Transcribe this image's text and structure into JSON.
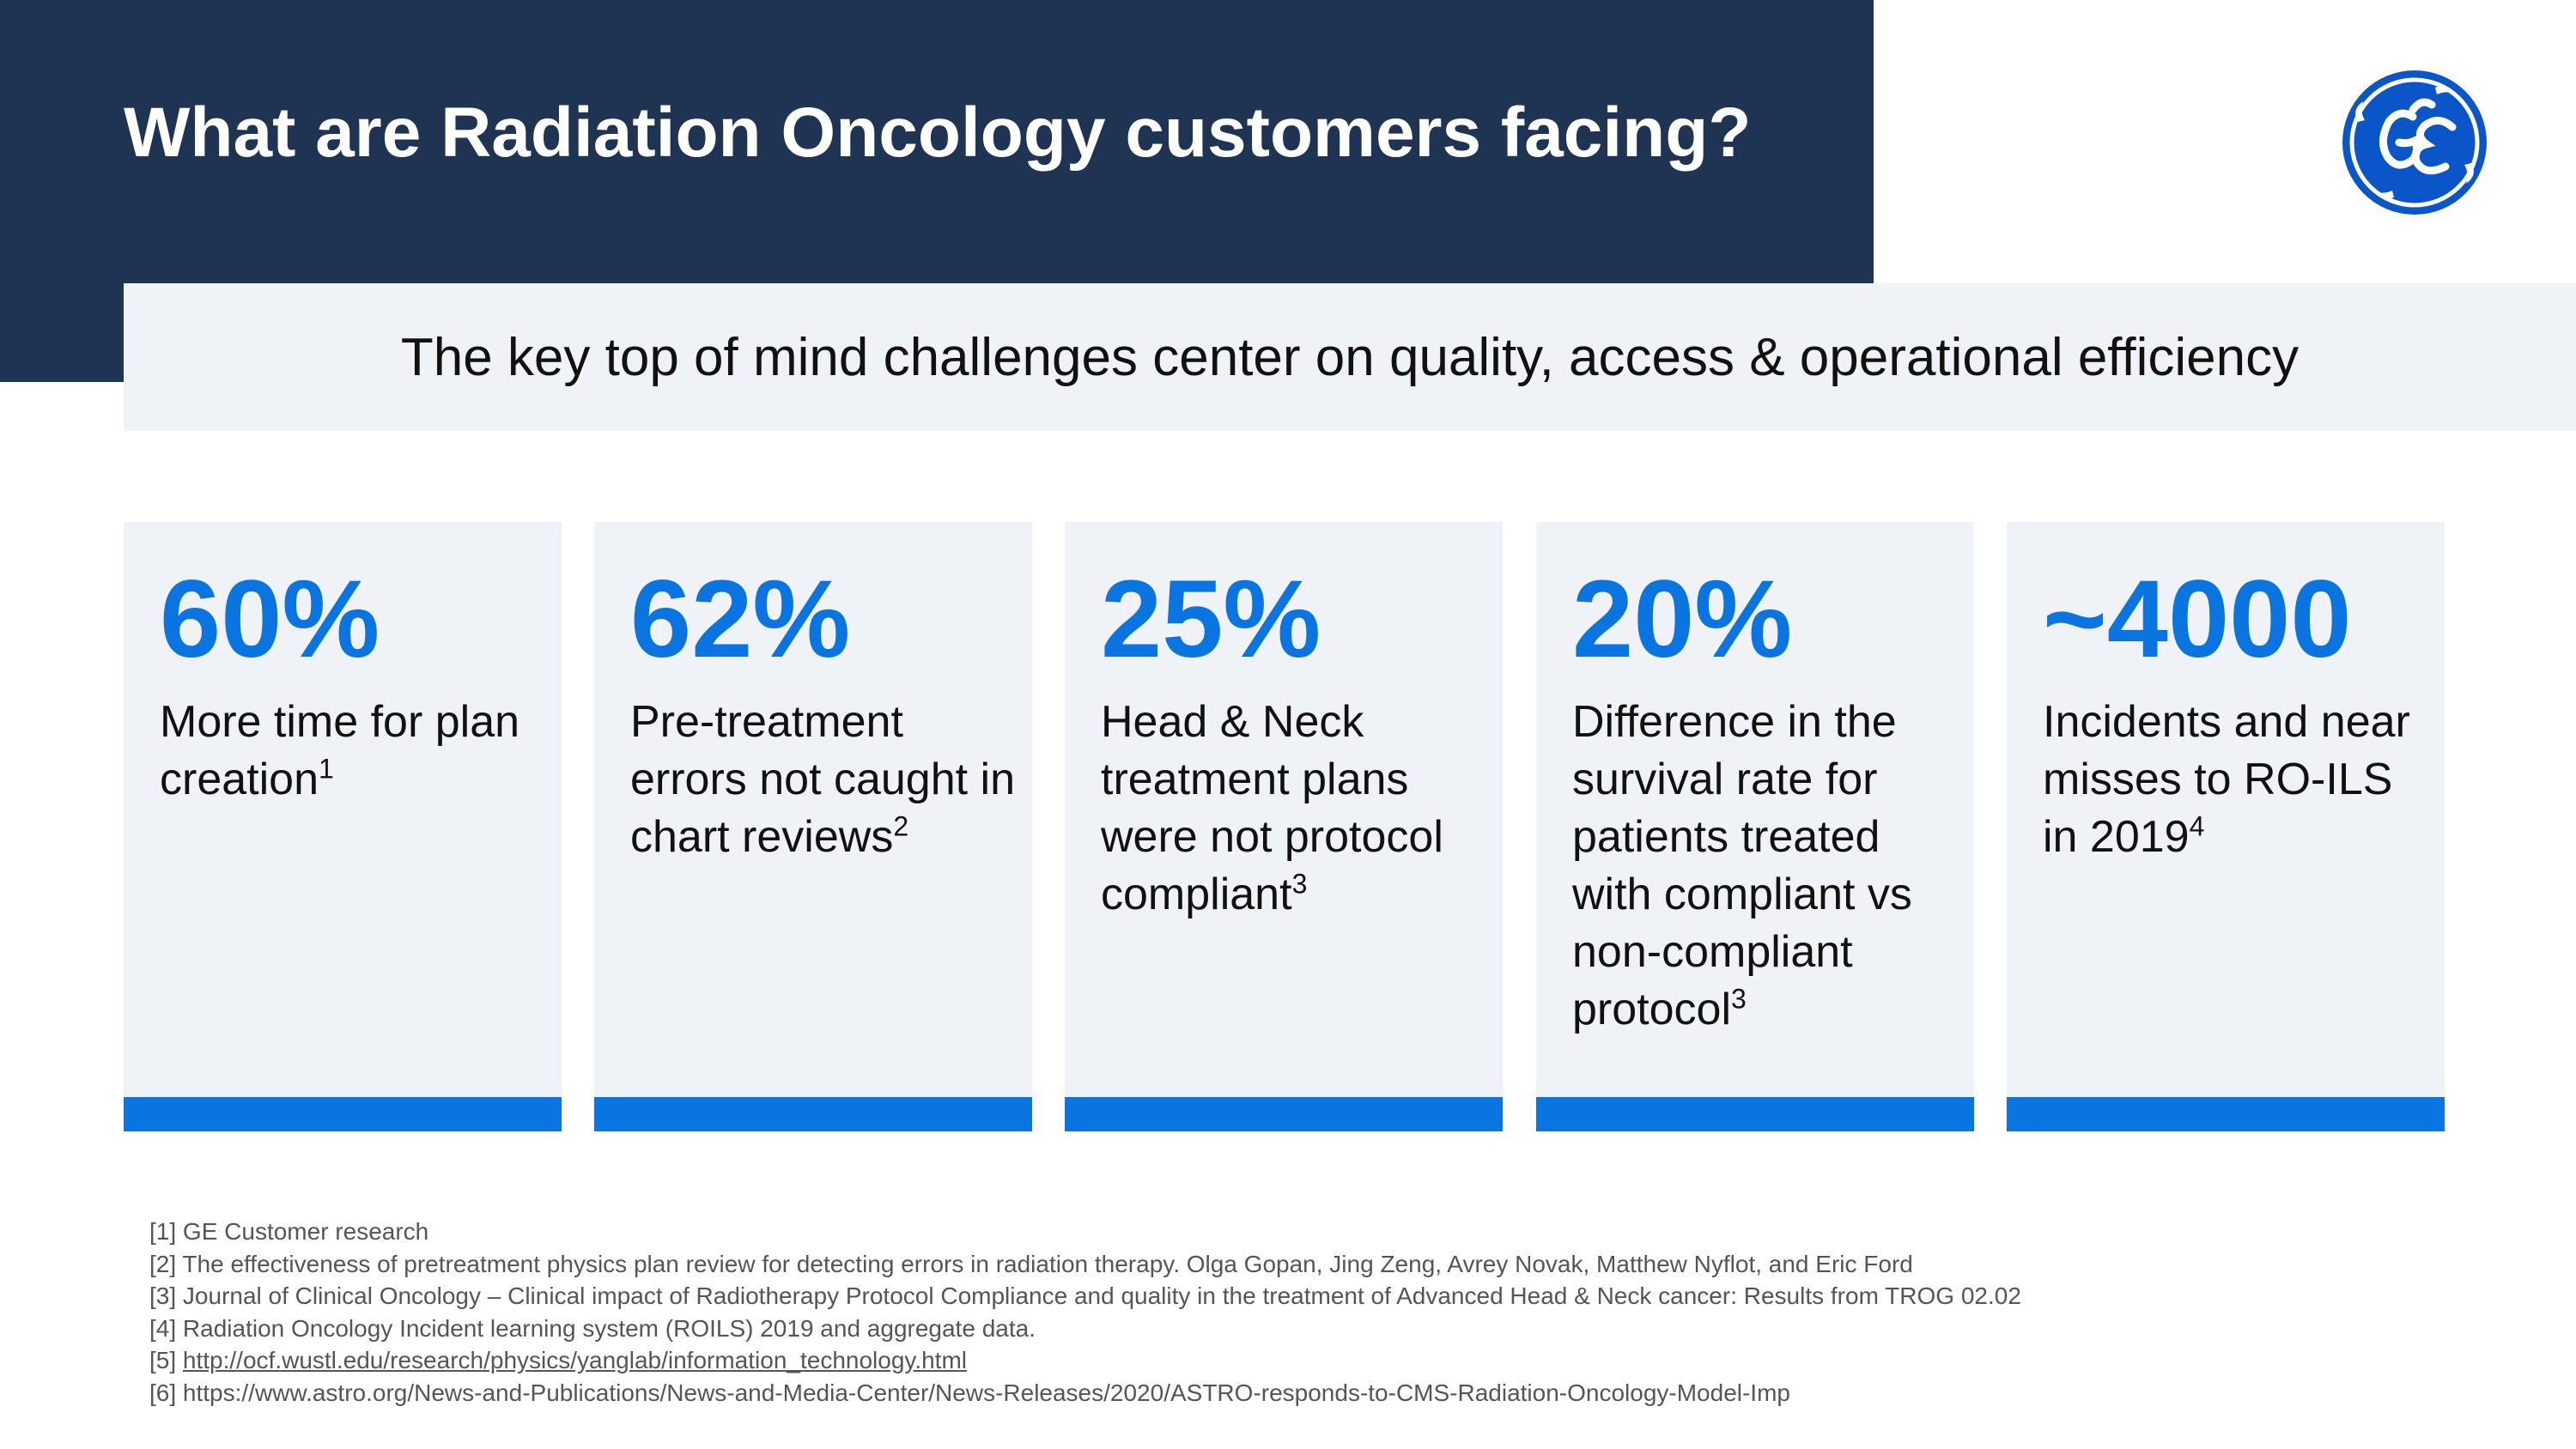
{
  "header": {
    "title": "What are Radiation Oncology customers facing?",
    "subtitle": "The key top of mind challenges center on quality, access & operational efficiency"
  },
  "logo": {
    "icon": "ge-monogram-logo",
    "color": "#0a56c8"
  },
  "colors": {
    "navy": "#1f3352",
    "accent": "#0a74e1",
    "card_bg": "#eff2f7"
  },
  "cards": [
    {
      "stat": "60%",
      "desc": "More time for plan creation",
      "ref": "1"
    },
    {
      "stat": "62%",
      "desc": "Pre-treatment errors not caught in chart reviews",
      "ref": "2"
    },
    {
      "stat": "25%",
      "desc": "Head & Neck treatment plans were not protocol compliant",
      "ref": "3"
    },
    {
      "stat": "20%",
      "desc": "Difference in the survival rate for patients treated with compliant vs non-compliant protocol",
      "ref": "3"
    },
    {
      "stat": "~4000",
      "desc": "Incidents and near misses to RO-ILS in 2019",
      "ref": "4"
    }
  ],
  "footnotes": [
    {
      "num": "[1]",
      "text": "GE Customer research"
    },
    {
      "num": "[2]",
      "text": "The effectiveness of pretreatment physics plan review for detecting errors in radiation therapy. Olga Gopan, Jing Zeng, Avrey Novak, Matthew Nyflot, and Eric Ford"
    },
    {
      "num": "[3]",
      "text": "Journal of Clinical Oncology – Clinical impact of Radiotherapy Protocol Compliance and quality in the treatment of Advanced Head & Neck cancer: Results from TROG 02.02"
    },
    {
      "num": "[4]",
      "text": "Radiation Oncology Incident learning system (ROILS) 2019 and aggregate data."
    },
    {
      "num": "[5]",
      "text": "http://ocf.wustl.edu/research/physics/yanglab/information_technology.html"
    },
    {
      "num": "[6]",
      "text": "https://www.astro.org/News-and-Publications/News-and-Media-Center/News-Releases/2020/ASTRO-responds-to-CMS-Radiation-Oncology-Model-Imp"
    }
  ]
}
